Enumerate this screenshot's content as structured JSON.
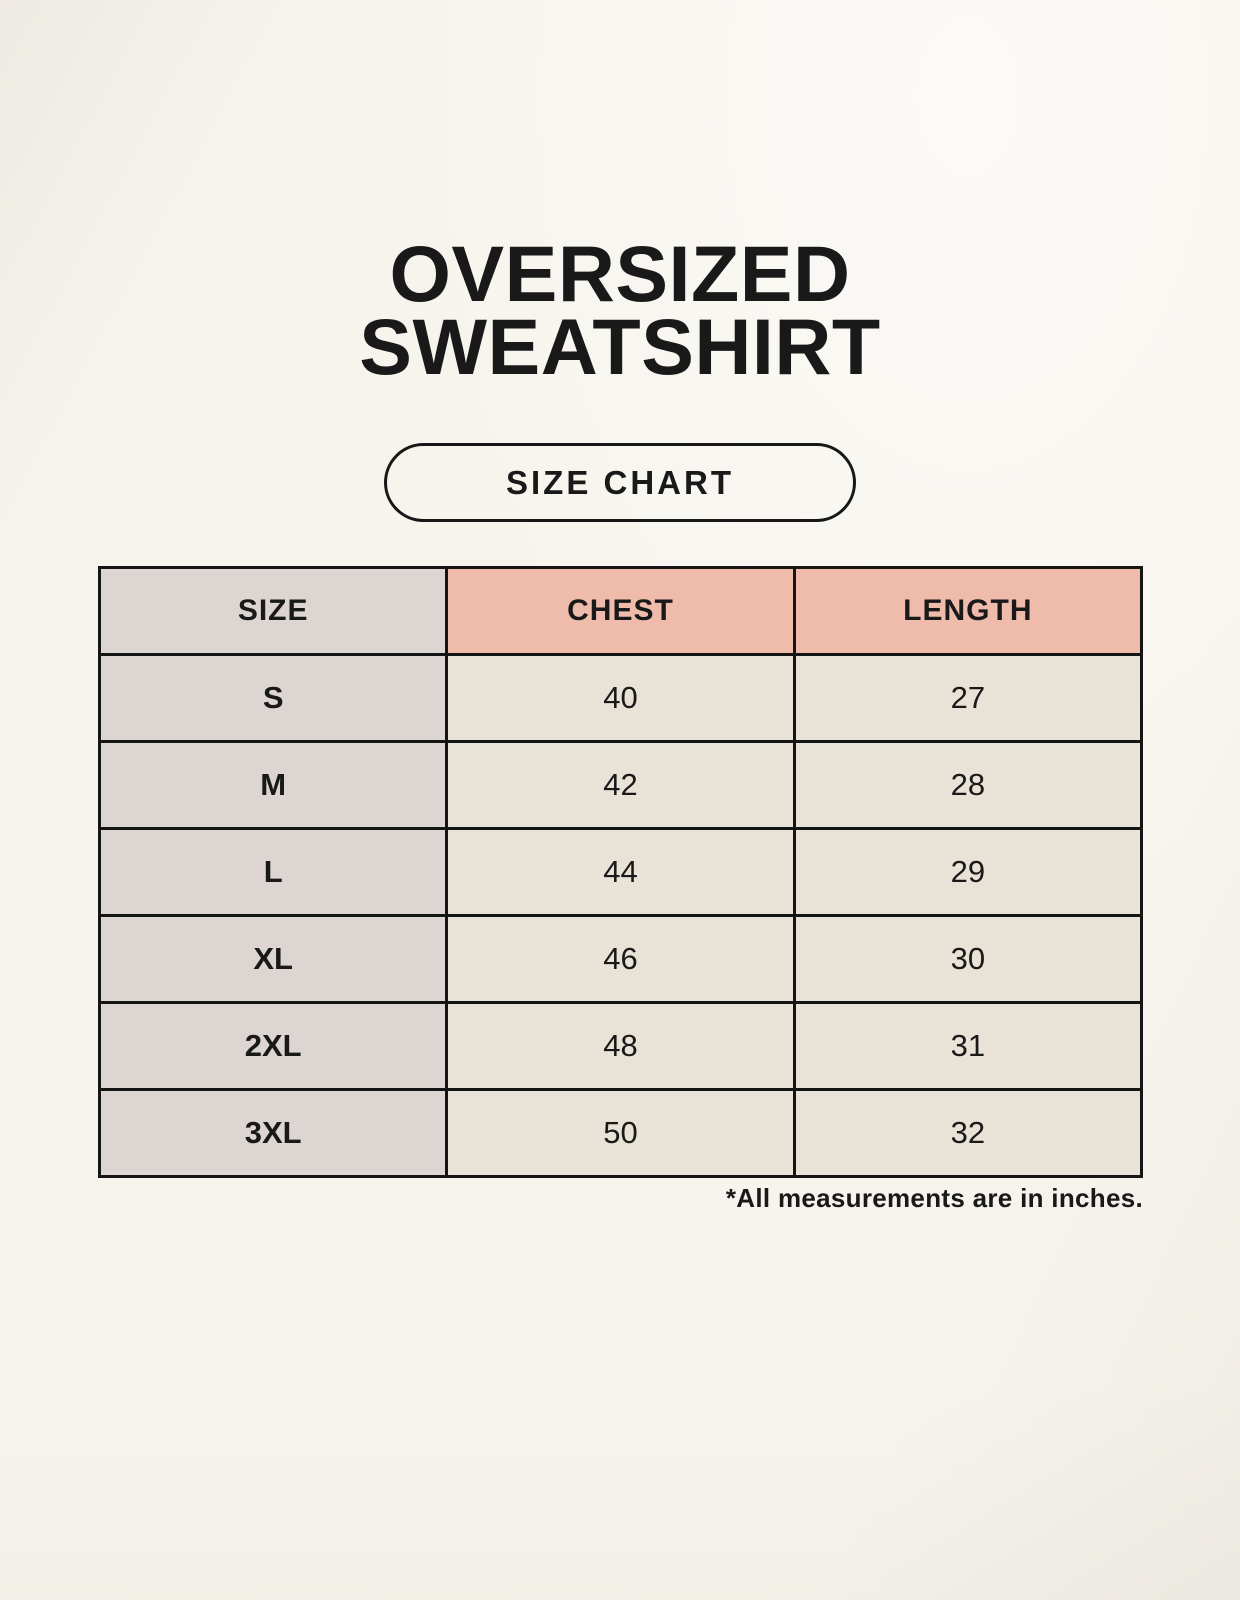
{
  "page": {
    "title_line1": "OVERSIZED",
    "title_line2": "SWEATSHIRT",
    "badge_label": "SIZE CHART",
    "footnote": "*All measurements are in inches."
  },
  "colors": {
    "background": "#f7f4ed",
    "size_column_bg": "#ddd5d1",
    "header_accent_bg": "#efbcab",
    "data_cell_bg": "#e9e2d6",
    "table_border": "#151515",
    "text": "#191919"
  },
  "chart_data": {
    "type": "table",
    "title": "OVERSIZED SWEATSHIRT",
    "subtitle": "SIZE CHART",
    "columns": [
      "SIZE",
      "CHEST",
      "LENGTH"
    ],
    "rows": [
      [
        "S",
        "40",
        "27"
      ],
      [
        "M",
        "42",
        "28"
      ],
      [
        "L",
        "44",
        "29"
      ],
      [
        "XL",
        "46",
        "30"
      ],
      [
        "2XL",
        "48",
        "31"
      ],
      [
        "3XL",
        "50",
        "32"
      ]
    ],
    "units": "inches",
    "note": "*All measurements are in inches."
  }
}
